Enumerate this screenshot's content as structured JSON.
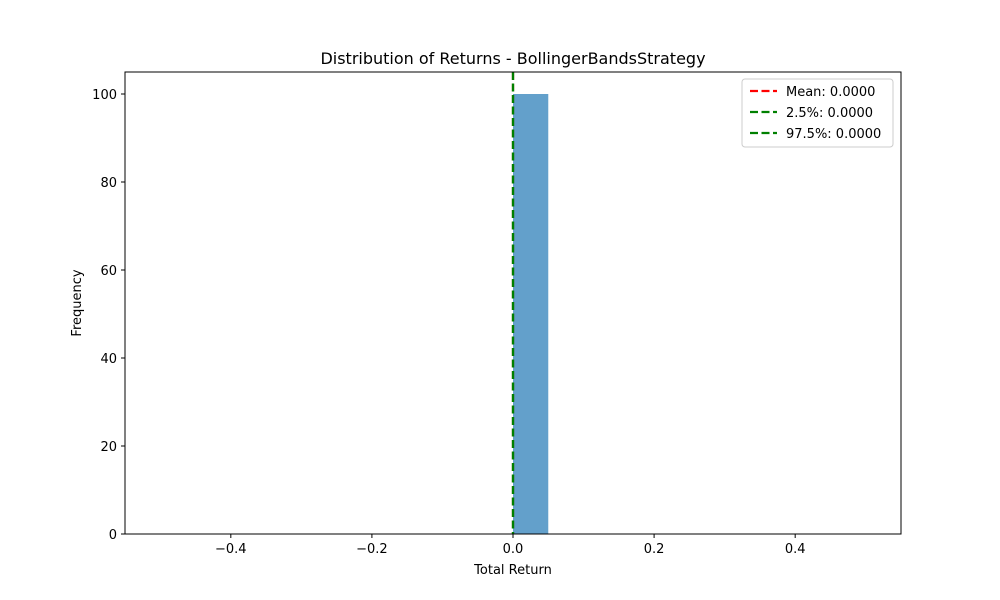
{
  "chart_data": {
    "type": "bar",
    "title": "Distribution of Returns - BollingerBandsStrategy",
    "xlabel": "Total Return",
    "ylabel": "Frequency",
    "xlim": [
      -0.55,
      0.55
    ],
    "ylim": [
      0,
      105
    ],
    "x_ticks": [
      -0.4,
      -0.2,
      0.0,
      0.2,
      0.4
    ],
    "x_tick_labels": [
      "−0.4",
      "−0.2",
      "0.0",
      "0.2",
      "0.4"
    ],
    "y_ticks": [
      0,
      20,
      40,
      60,
      80,
      100
    ],
    "y_tick_labels": [
      "0",
      "20",
      "40",
      "60",
      "80",
      "100"
    ],
    "bins": [
      {
        "x0": 0.0,
        "x1": 0.05,
        "count": 100
      }
    ],
    "bar_color": "#63a0cb",
    "vlines": [
      {
        "label": "Mean: 0.0000",
        "x": 0.0,
        "color": "#ff0000"
      },
      {
        "label": "2.5%: 0.0000",
        "x": 0.0,
        "color": "#008000"
      },
      {
        "label": "97.5%: 0.0000",
        "x": 0.0,
        "color": "#008000"
      }
    ],
    "legend_position": "top-right",
    "grid": false
  }
}
